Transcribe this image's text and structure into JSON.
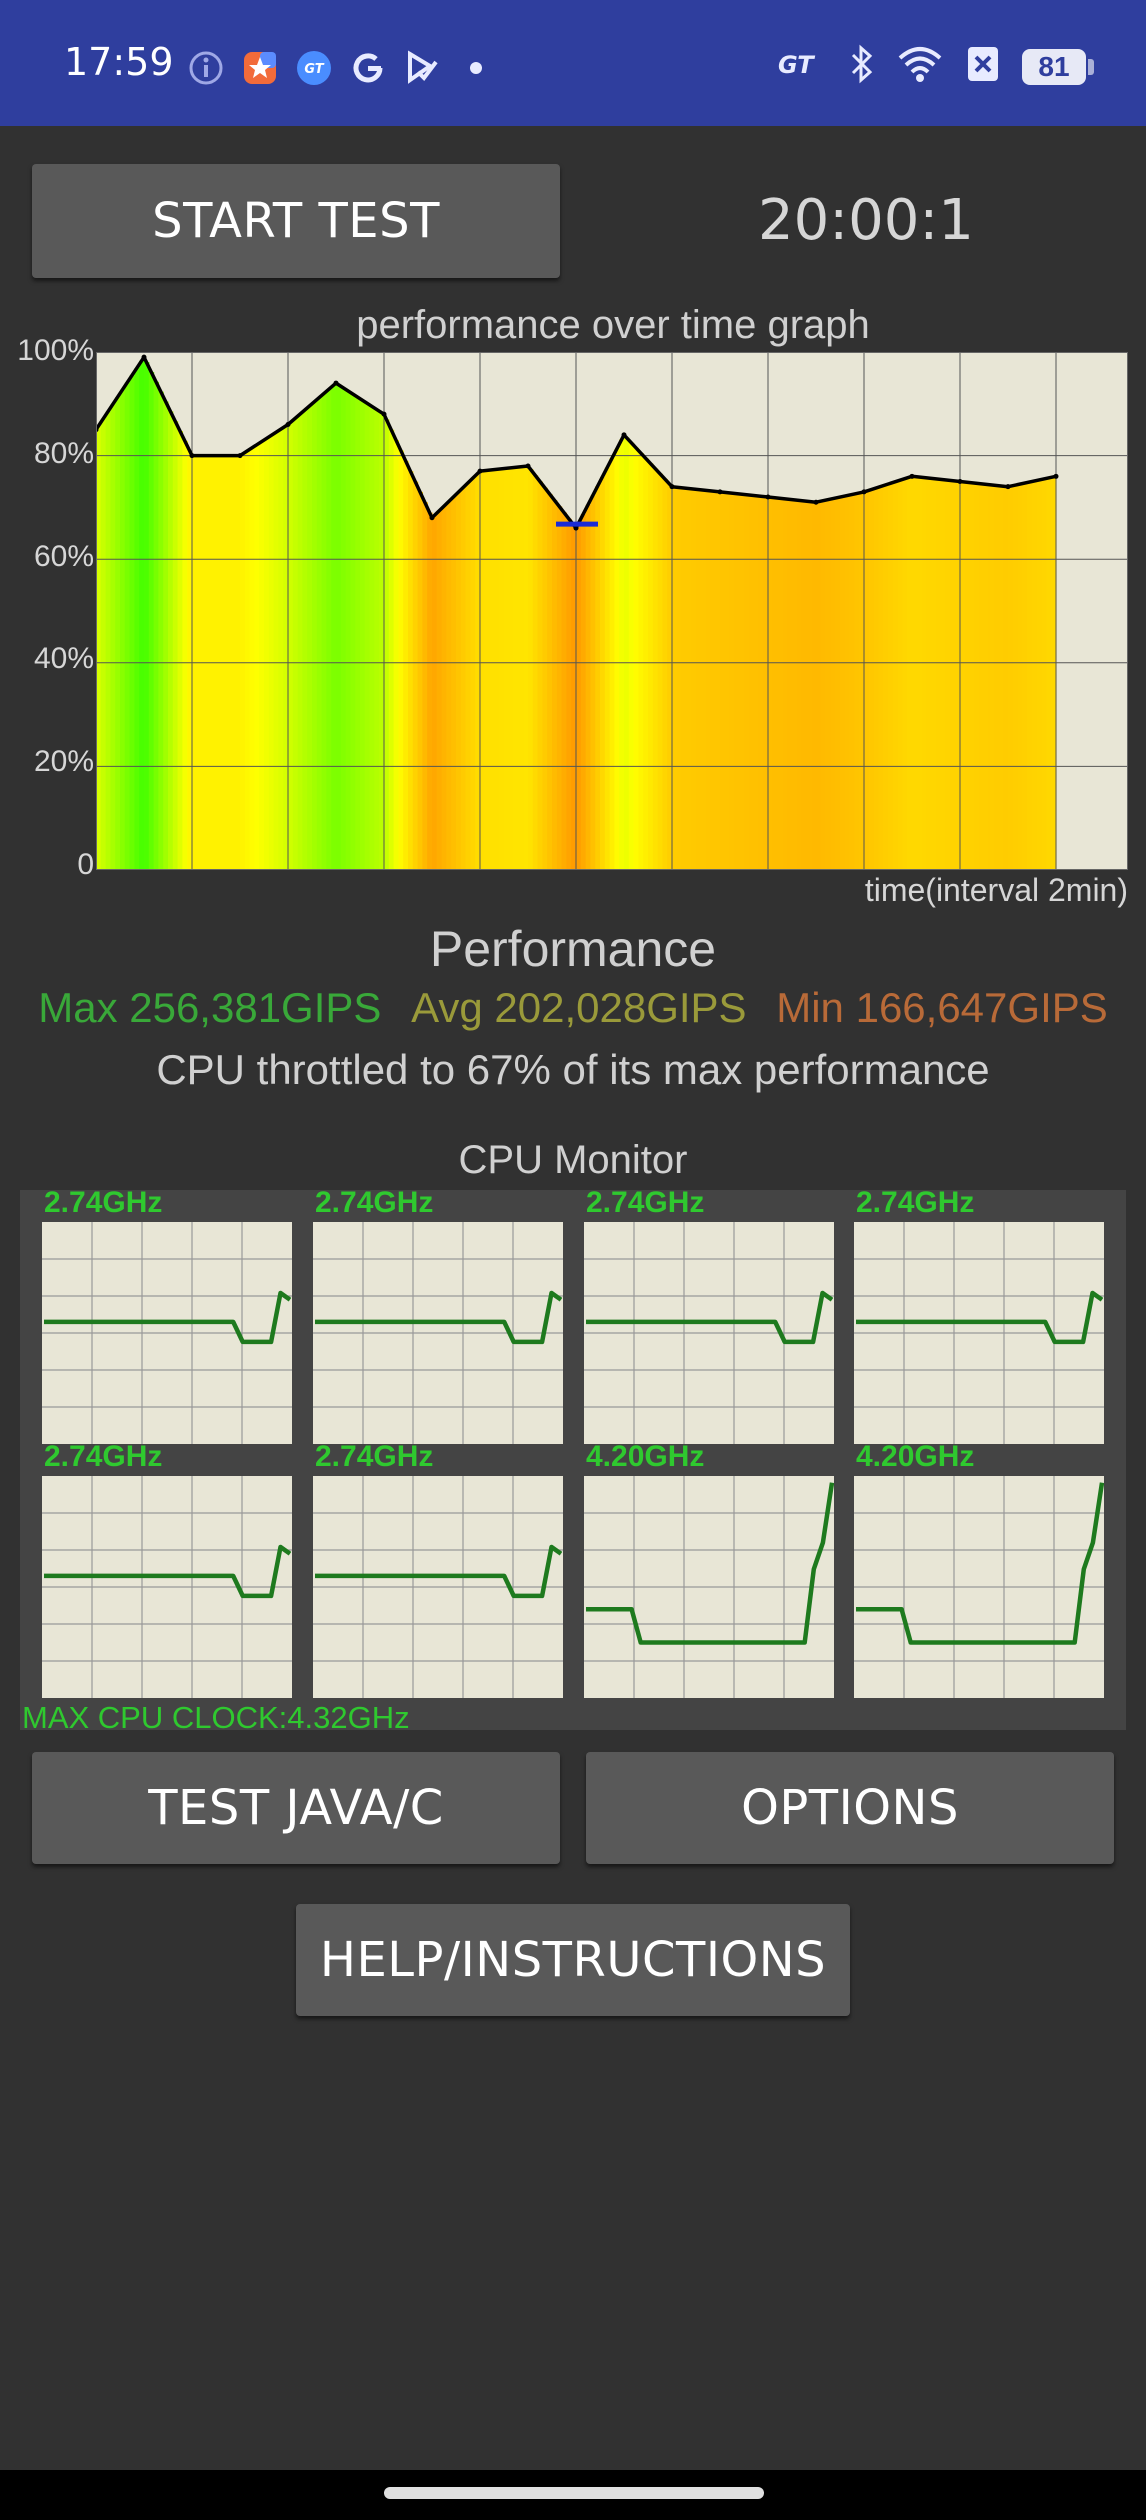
{
  "status_bar": {
    "time": "17:59",
    "left_icons": [
      "info-icon",
      "app-star-icon",
      "gt-app-icon",
      "google-icon",
      "play-check-icon",
      "dot-icon"
    ],
    "right_icons": [
      "gt-mode-icon",
      "bluetooth-icon",
      "wifi-icon",
      "sim-x-icon"
    ],
    "battery": "81"
  },
  "header": {
    "start_button": "START TEST",
    "timer": "20:00:1"
  },
  "graph": {
    "title": "performance over time graph",
    "x_label": "time(interval 2min)",
    "y_ticks": [
      "100%",
      "80%",
      "60%",
      "40%",
      "20%",
      "0"
    ]
  },
  "chart_data": {
    "type": "line",
    "title": "performance over time graph",
    "xlabel": "time(interval 2min)",
    "ylabel": "",
    "ylim": [
      0,
      100
    ],
    "x_unit": "minutes",
    "x": [
      0,
      1,
      2,
      3,
      4,
      5,
      6,
      7,
      8,
      9,
      10,
      11,
      12,
      13,
      14,
      15,
      16,
      17,
      18,
      19,
      20
    ],
    "series": [
      {
        "values": [
          85,
          99,
          80,
          80,
          86,
          94,
          88,
          68,
          77,
          78,
          66,
          84,
          74,
          73,
          72,
          71,
          73,
          76,
          75,
          74,
          76
        ]
      }
    ],
    "grid": true
  },
  "performance": {
    "title": "Performance",
    "max": "Max 256,381GIPS",
    "avg": "Avg 202,028GIPS",
    "min": "Min 166,647GIPS",
    "throttle": "CPU throttled to 67% of its max performance"
  },
  "cpu_monitor": {
    "title": "CPU Monitor",
    "cores": [
      {
        "freq": "2.74GHz",
        "trace": [
          0.55,
          0.55,
          0.55,
          0.55,
          0.55,
          0.55,
          0.55,
          0.55,
          0.55,
          0.55,
          0.55,
          0.55,
          0.55,
          0.55,
          0.55,
          0.55,
          0.55,
          0.55,
          0.55,
          0.55,
          0.55,
          0.46,
          0.46,
          0.46,
          0.46,
          0.68,
          0.65
        ]
      },
      {
        "freq": "2.74GHz",
        "trace": [
          0.55,
          0.55,
          0.55,
          0.55,
          0.55,
          0.55,
          0.55,
          0.55,
          0.55,
          0.55,
          0.55,
          0.55,
          0.55,
          0.55,
          0.55,
          0.55,
          0.55,
          0.55,
          0.55,
          0.55,
          0.55,
          0.46,
          0.46,
          0.46,
          0.46,
          0.68,
          0.65
        ]
      },
      {
        "freq": "2.74GHz",
        "trace": [
          0.55,
          0.55,
          0.55,
          0.55,
          0.55,
          0.55,
          0.55,
          0.55,
          0.55,
          0.55,
          0.55,
          0.55,
          0.55,
          0.55,
          0.55,
          0.55,
          0.55,
          0.55,
          0.55,
          0.55,
          0.55,
          0.46,
          0.46,
          0.46,
          0.46,
          0.68,
          0.65
        ]
      },
      {
        "freq": "2.74GHz",
        "trace": [
          0.55,
          0.55,
          0.55,
          0.55,
          0.55,
          0.55,
          0.55,
          0.55,
          0.55,
          0.55,
          0.55,
          0.55,
          0.55,
          0.55,
          0.55,
          0.55,
          0.55,
          0.55,
          0.55,
          0.55,
          0.55,
          0.46,
          0.46,
          0.46,
          0.46,
          0.68,
          0.65
        ]
      },
      {
        "freq": "2.74GHz",
        "trace": [
          0.55,
          0.55,
          0.55,
          0.55,
          0.55,
          0.55,
          0.55,
          0.55,
          0.55,
          0.55,
          0.55,
          0.55,
          0.55,
          0.55,
          0.55,
          0.55,
          0.55,
          0.55,
          0.55,
          0.55,
          0.55,
          0.46,
          0.46,
          0.46,
          0.46,
          0.68,
          0.65
        ]
      },
      {
        "freq": "2.74GHz",
        "trace": [
          0.55,
          0.55,
          0.55,
          0.55,
          0.55,
          0.55,
          0.55,
          0.55,
          0.55,
          0.55,
          0.55,
          0.55,
          0.55,
          0.55,
          0.55,
          0.55,
          0.55,
          0.55,
          0.55,
          0.55,
          0.55,
          0.46,
          0.46,
          0.46,
          0.46,
          0.68,
          0.65
        ]
      },
      {
        "freq": "4.20GHz",
        "trace": [
          0.4,
          0.4,
          0.4,
          0.4,
          0.4,
          0.4,
          0.25,
          0.25,
          0.25,
          0.25,
          0.25,
          0.25,
          0.25,
          0.25,
          0.25,
          0.25,
          0.25,
          0.25,
          0.25,
          0.25,
          0.25,
          0.25,
          0.25,
          0.25,
          0.25,
          0.58,
          0.7,
          0.97
        ]
      },
      {
        "freq": "4.20GHz",
        "trace": [
          0.4,
          0.4,
          0.4,
          0.4,
          0.4,
          0.4,
          0.25,
          0.25,
          0.25,
          0.25,
          0.25,
          0.25,
          0.25,
          0.25,
          0.25,
          0.25,
          0.25,
          0.25,
          0.25,
          0.25,
          0.25,
          0.25,
          0.25,
          0.25,
          0.25,
          0.58,
          0.7,
          0.97
        ]
      }
    ],
    "max_clock": "MAX CPU CLOCK:4.32GHz"
  },
  "buttons": {
    "test_java": "TEST JAVA/C",
    "options": "OPTIONS",
    "help": "HELP/INSTRUCTIONS"
  },
  "colors": {
    "status_bar": "#2f3e9e",
    "background": "#313131",
    "button": "#595959",
    "graph_bg": "#e8e6d6",
    "perf_line": "#000000",
    "cpu_trace": "#1e7a1e",
    "max_text": "#39a839",
    "avg_text": "#9a9a3a",
    "min_text": "#b86a38"
  }
}
